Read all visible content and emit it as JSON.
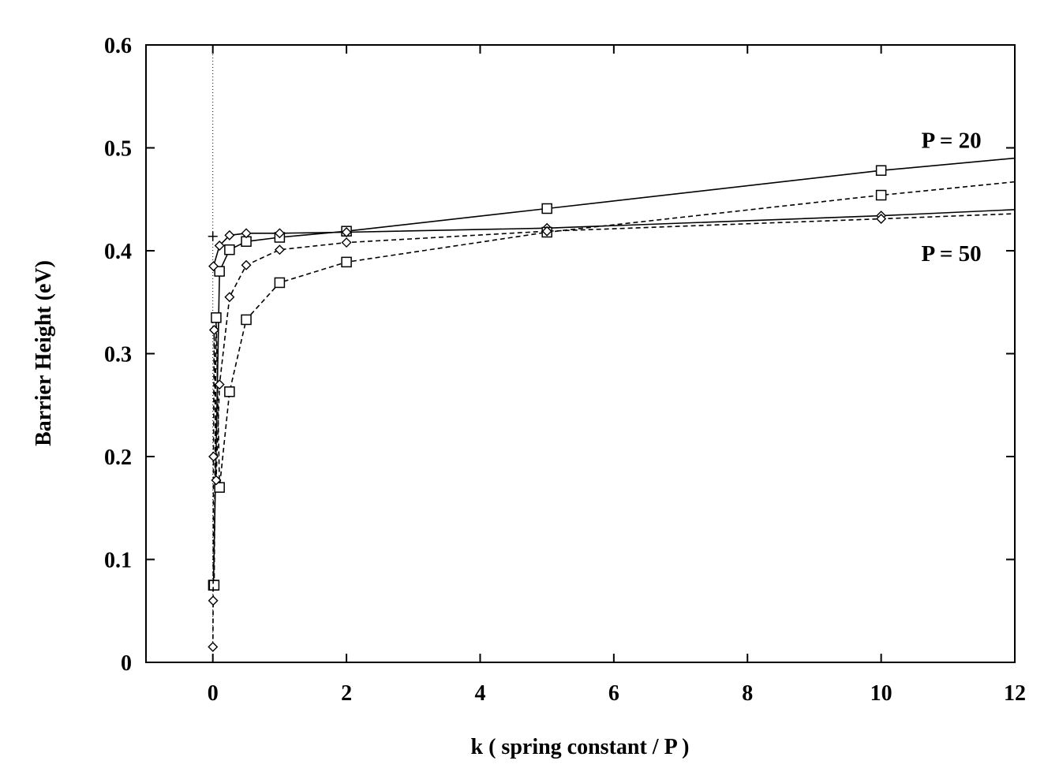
{
  "chart_data": {
    "type": "line",
    "title": "",
    "xlabel": "k   ( spring constant / P )",
    "ylabel": "Barrier Height (eV)",
    "xlim": [
      -1,
      12
    ],
    "ylim": [
      0,
      0.6
    ],
    "xticks": [
      0,
      2,
      4,
      6,
      8,
      10,
      12
    ],
    "yticks": [
      0,
      0.1,
      0.2,
      0.3,
      0.4,
      0.5,
      0.6
    ],
    "xtick_labels": [
      "0",
      "2",
      "4",
      "6",
      "8",
      "10",
      "12"
    ],
    "ytick_labels": [
      "0",
      "0.1",
      "0.2",
      "0.3",
      "0.4",
      "0.5",
      "0.6"
    ],
    "grid": false,
    "legend": "none",
    "annotations": [
      {
        "text": "P = 20",
        "x": 11.05,
        "y": 0.5
      },
      {
        "text": "P = 50",
        "x": 11.05,
        "y": 0.39
      }
    ],
    "reference_point": {
      "x": 0,
      "y": 0.414,
      "marker": "plus"
    },
    "series": [
      {
        "marker": "square",
        "dash": "solid",
        "x": [
          0.01,
          0.1,
          0.25,
          0.5,
          1,
          2,
          5,
          10,
          12
        ],
        "y": [
          0.075,
          0.38,
          0.401,
          0.409,
          0.413,
          0.419,
          0.441,
          0.478,
          0.49
        ]
      },
      {
        "marker": "diamond",
        "dash": "solid",
        "x": [
          0.01,
          0.1,
          0.25,
          0.5,
          1,
          2,
          5,
          10,
          12
        ],
        "y": [
          0.385,
          0.405,
          0.415,
          0.417,
          0.417,
          0.418,
          0.422,
          0.434,
          0.44
        ]
      },
      {
        "marker": "square",
        "dash": "dashed",
        "x": [
          0.01,
          0.02,
          0.05,
          0.1,
          0.25,
          0.5,
          1,
          2,
          5,
          10,
          12
        ],
        "y": [
          0.075,
          0.075,
          0.335,
          0.17,
          0.263,
          0.333,
          0.369,
          0.389,
          0.418,
          0.454,
          0.467
        ]
      },
      {
        "marker": "diamond",
        "dash": "dashed",
        "x": [
          0.001,
          0.005,
          0.01,
          0.02,
          0.05,
          0.1,
          0.25,
          0.5,
          1,
          2,
          5,
          10,
          12
        ],
        "y": [
          0.015,
          0.06,
          0.2,
          0.323,
          0.177,
          0.27,
          0.355,
          0.386,
          0.401,
          0.408,
          0.419,
          0.431,
          0.436
        ]
      }
    ]
  }
}
